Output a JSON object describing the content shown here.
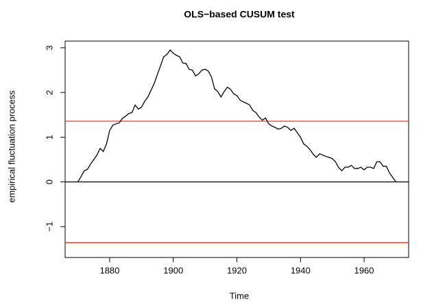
{
  "chart_data": {
    "type": "line",
    "title": "OLS−based CUSUM test",
    "x_label": "Time",
    "y_label": "empirical fluctuation process",
    "x": [
      1870,
      1871,
      1872,
      1873,
      1874,
      1875,
      1876,
      1877,
      1878,
      1879,
      1880,
      1881,
      1882,
      1883,
      1884,
      1885,
      1886,
      1887,
      1888,
      1889,
      1890,
      1891,
      1892,
      1893,
      1894,
      1895,
      1896,
      1897,
      1898,
      1899,
      1900,
      1901,
      1902,
      1903,
      1904,
      1905,
      1906,
      1907,
      1908,
      1909,
      1910,
      1911,
      1912,
      1913,
      1914,
      1915,
      1916,
      1917,
      1918,
      1919,
      1920,
      1921,
      1922,
      1923,
      1924,
      1925,
      1926,
      1927,
      1928,
      1929,
      1930,
      1931,
      1932,
      1933,
      1934,
      1935,
      1936,
      1937,
      1938,
      1939,
      1940,
      1941,
      1942,
      1943,
      1944,
      1945,
      1946,
      1947,
      1948,
      1949,
      1950,
      1951,
      1952,
      1953,
      1954,
      1955,
      1956,
      1957,
      1958,
      1959,
      1960,
      1961,
      1962,
      1963,
      1964,
      1965,
      1966,
      1967,
      1968,
      1969,
      1970
    ],
    "series": [
      {
        "color": "#000000",
        "values": [
          0,
          0.12,
          0.25,
          0.28,
          0.4,
          0.5,
          0.6,
          0.75,
          0.68,
          0.85,
          1.15,
          1.27,
          1.3,
          1.32,
          1.42,
          1.47,
          1.53,
          1.55,
          1.72,
          1.63,
          1.67,
          1.8,
          1.9,
          2.05,
          2.2,
          2.4,
          2.6,
          2.8,
          2.85,
          2.95,
          2.88,
          2.83,
          2.8,
          2.66,
          2.65,
          2.52,
          2.5,
          2.37,
          2.42,
          2.5,
          2.52,
          2.48,
          2.35,
          2.08,
          2.02,
          1.9,
          2.02,
          2.12,
          2.07,
          1.97,
          1.93,
          1.83,
          1.79,
          1.76,
          1.72,
          1.6,
          1.55,
          1.45,
          1.38,
          1.43,
          1.3,
          1.25,
          1.22,
          1.18,
          1.2,
          1.25,
          1.22,
          1.15,
          1.2,
          1.1,
          1.0,
          0.85,
          0.8,
          0.72,
          0.62,
          0.55,
          0.63,
          0.6,
          0.57,
          0.55,
          0.52,
          0.45,
          0.32,
          0.25,
          0.33,
          0.33,
          0.37,
          0.3,
          0.3,
          0.33,
          0.27,
          0.33,
          0.33,
          0.3,
          0.45,
          0.45,
          0.35,
          0.35,
          0.2,
          0.1,
          0
        ]
      }
    ],
    "reference_lines": [
      {
        "value": 1.358,
        "color": "#df3b3b"
      },
      {
        "value": -1.358,
        "color": "#df3b3b"
      },
      {
        "value": 0,
        "color": "#000000"
      }
    ],
    "xlim": [
      1866,
      1974
    ],
    "ylim": [
      -1.69,
      3.15
    ],
    "xticks": [
      1880,
      1900,
      1920,
      1940,
      1960
    ],
    "yticks": [
      {
        "value": -1,
        "label": "−1"
      },
      0,
      1,
      2,
      3
    ]
  }
}
